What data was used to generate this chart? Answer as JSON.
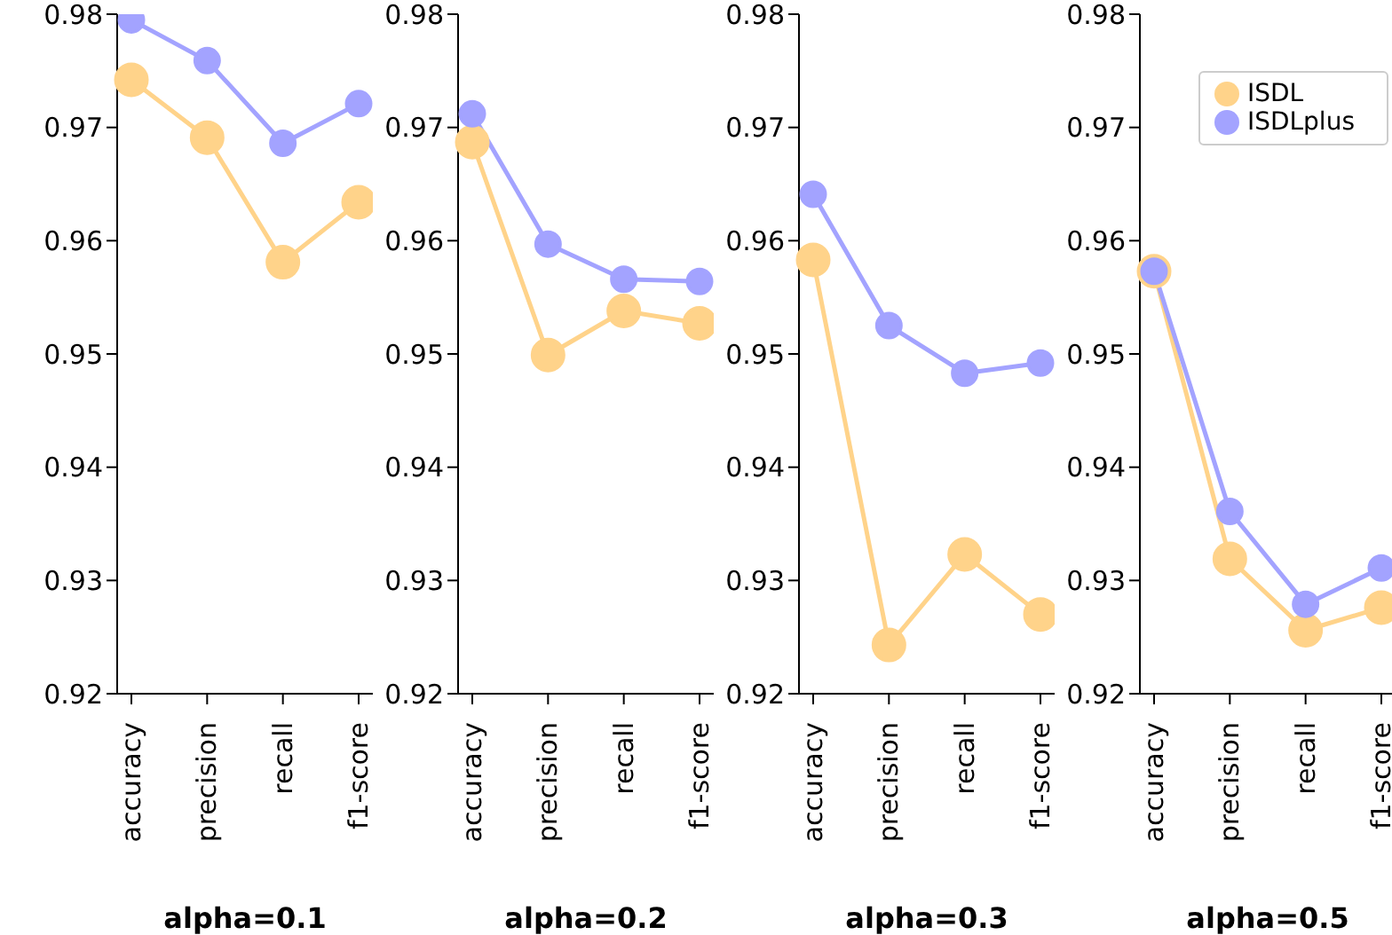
{
  "chart_data": [
    {
      "type": "line",
      "xlabel": "alpha=0.1",
      "categories": [
        "accuracy",
        "precision",
        "recall",
        "f1-score"
      ],
      "ylim": [
        0.92,
        0.98
      ],
      "yticks": [
        0.92,
        0.93,
        0.94,
        0.95,
        0.96,
        0.97,
        0.98
      ],
      "grid": false,
      "legend": false,
      "marker": "circle",
      "series": [
        {
          "color": "#ffd38a",
          "values": [
            0.9742,
            0.9691,
            0.9581,
            0.9634
          ]
        },
        {
          "color": "#a3a3ff",
          "values": [
            0.9795,
            0.9759,
            0.9686,
            0.9721
          ]
        }
      ]
    },
    {
      "type": "line",
      "xlabel": "alpha=0.2",
      "categories": [
        "accuracy",
        "precision",
        "recall",
        "f1-score"
      ],
      "ylim": [
        0.92,
        0.98
      ],
      "yticks": [
        0.92,
        0.93,
        0.94,
        0.95,
        0.96,
        0.97,
        0.98
      ],
      "grid": false,
      "legend": false,
      "marker": "circle",
      "series": [
        {
          "color": "#ffd38a",
          "values": [
            0.9687,
            0.9499,
            0.9538,
            0.9527
          ]
        },
        {
          "color": "#a3a3ff",
          "values": [
            0.9712,
            0.9597,
            0.9566,
            0.9564
          ]
        }
      ]
    },
    {
      "type": "line",
      "xlabel": "alpha=0.3",
      "categories": [
        "accuracy",
        "precision",
        "recall",
        "f1-score"
      ],
      "ylim": [
        0.92,
        0.98
      ],
      "yticks": [
        0.92,
        0.93,
        0.94,
        0.95,
        0.96,
        0.97,
        0.98
      ],
      "grid": false,
      "legend": false,
      "marker": "circle",
      "series": [
        {
          "color": "#ffd38a",
          "values": [
            0.9583,
            0.9243,
            0.9323,
            0.927
          ]
        },
        {
          "color": "#a3a3ff",
          "values": [
            0.9641,
            0.9525,
            0.9483,
            0.9492
          ]
        }
      ]
    },
    {
      "type": "line",
      "xlabel": "alpha=0.5",
      "categories": [
        "accuracy",
        "precision",
        "recall",
        "f1-score"
      ],
      "ylim": [
        0.92,
        0.98
      ],
      "yticks": [
        0.92,
        0.93,
        0.94,
        0.95,
        0.96,
        0.97,
        0.98
      ],
      "grid": false,
      "legend": "top right",
      "marker": "circle",
      "series": [
        {
          "name": "ISDL",
          "color": "#ffd38a",
          "values": [
            0.9573,
            0.9319,
            0.9256,
            0.9276
          ]
        },
        {
          "name": "ISDLplus",
          "color": "#a3a3ff",
          "values": [
            0.9573,
            0.9361,
            0.9279,
            0.9311
          ]
        }
      ]
    }
  ]
}
